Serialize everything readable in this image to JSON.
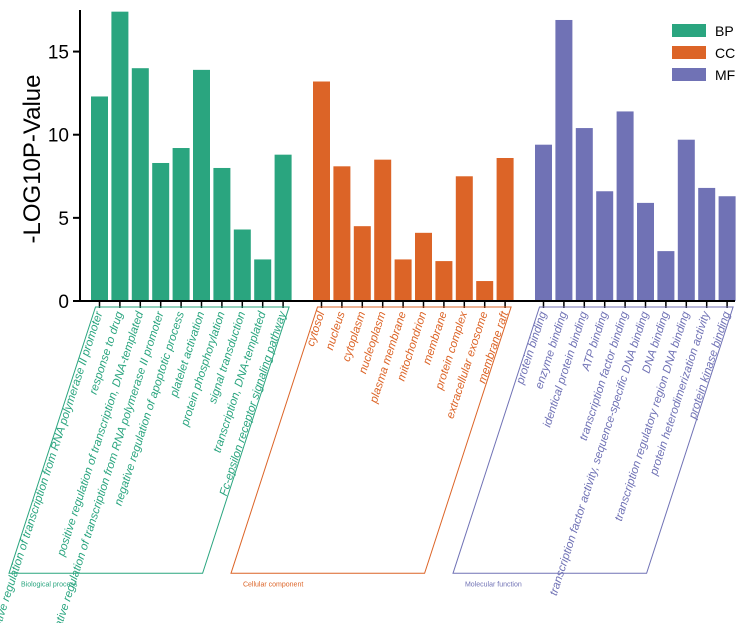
{
  "chart_data": {
    "type": "bar",
    "title": "",
    "xlabel": "",
    "ylabel": "-LOG10P-Value",
    "ylim": [
      0,
      17.5
    ],
    "yticks": [
      0,
      5,
      10,
      15
    ],
    "legend": {
      "position": "top-right",
      "entries": [
        "BP",
        "CC",
        "MF"
      ]
    },
    "colors": {
      "BP": "#2aa57f",
      "CC": "#dc6427",
      "MF": "#7072b5"
    },
    "series": [
      {
        "name": "BP",
        "group_label": "Biological process",
        "categories": [
          "positive regulation of transcription from RNA polymerase II promoter",
          "response to drug",
          "positive regulation of transcription, DNA-templated",
          "negative regulation of transcription from RNA polymerase II promoter",
          "negative regulation of apoptotic process",
          "platelet activation",
          "protein phosphorylation",
          "signal transduction",
          "transcription, DNA-templated",
          "Fc-epsilon receptor signaling pathway"
        ],
        "values": [
          12.3,
          17.4,
          14.0,
          8.3,
          9.2,
          13.9,
          8.0,
          4.3,
          2.5,
          8.8
        ]
      },
      {
        "name": "CC",
        "group_label": "Cellular component",
        "categories": [
          "cytosol",
          "nucleus",
          "cytoplasm",
          "nucleoplasm",
          "plasma membrane",
          "mitochondrion",
          "membrane",
          "protein complex",
          "extracellular exosome",
          "membrane raft"
        ],
        "values": [
          13.2,
          8.1,
          4.5,
          8.5,
          2.5,
          4.1,
          2.4,
          7.5,
          1.2,
          8.6
        ]
      },
      {
        "name": "MF",
        "group_label": "Molecular function",
        "categories": [
          "protein binding",
          "enzyme binding",
          "identical protein binding",
          "ATP binding",
          "transcription factor binding",
          "transcription factor activity, sequence-specific DNA binding",
          "DNA binding",
          "transcription regulatory region DNA binding",
          "protein heterodimerization activity",
          "protein kinase binding"
        ],
        "values": [
          9.4,
          16.9,
          10.4,
          6.6,
          11.4,
          5.9,
          3.0,
          9.7,
          6.8,
          6.3
        ]
      }
    ]
  }
}
